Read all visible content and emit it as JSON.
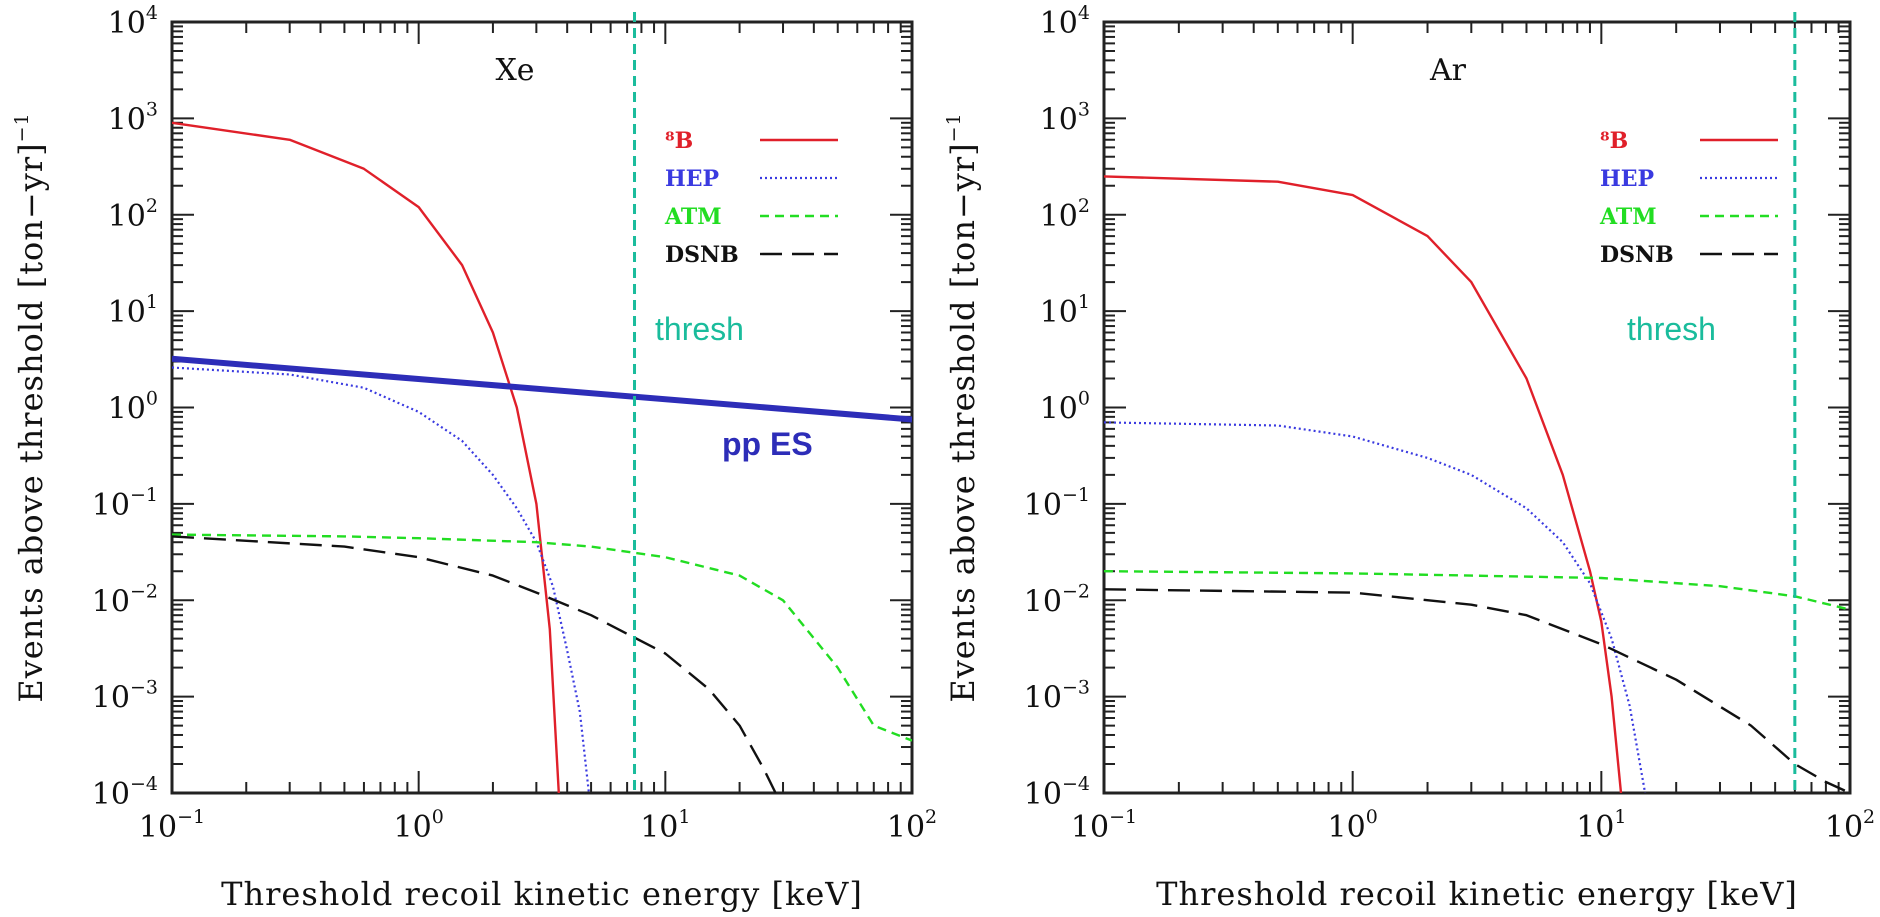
{
  "chart_data": [
    {
      "type": "line",
      "title": "Xe",
      "xlabel": "Threshold recoil kinetic energy [keV]",
      "ylabel": "Events above threshold [ton−yr]",
      "ylabel_exp": "−1",
      "x_scale": "log",
      "y_scale": "log",
      "xlim": [
        0.1,
        100
      ],
      "ylim": [
        0.0001,
        10000
      ],
      "x_ticks": [
        {
          "value": 0.1,
          "base": "10",
          "exp": "−1"
        },
        {
          "value": 1,
          "base": "10",
          "exp": "0"
        },
        {
          "value": 10,
          "base": "10",
          "exp": "1"
        },
        {
          "value": 100,
          "base": "10",
          "exp": "2"
        }
      ],
      "y_ticks": [
        {
          "value": 0.0001,
          "base": "10",
          "exp": "−4"
        },
        {
          "value": 0.001,
          "base": "10",
          "exp": "−3"
        },
        {
          "value": 0.01,
          "base": "10",
          "exp": "−2"
        },
        {
          "value": 0.1,
          "base": "10",
          "exp": "−1"
        },
        {
          "value": 1,
          "base": "10",
          "exp": "0"
        },
        {
          "value": 10,
          "base": "10",
          "exp": "1"
        },
        {
          "value": 100,
          "base": "10",
          "exp": "2"
        },
        {
          "value": 1000,
          "base": "10",
          "exp": "3"
        },
        {
          "value": 10000,
          "base": "10",
          "exp": "4"
        }
      ],
      "legend_placement": "top-right",
      "series": [
        {
          "name": "⁸B",
          "color": "#e0202a",
          "style": "solid",
          "x": [
            0.1,
            0.3,
            0.6,
            1.0,
            1.5,
            2.0,
            2.5,
            3.0,
            3.4,
            3.7
          ],
          "y": [
            900,
            600,
            300,
            120,
            30,
            6,
            1.0,
            0.1,
            0.005,
            0.0001
          ]
        },
        {
          "name": "HEP",
          "color": "#3a3ae0",
          "style": "dotted",
          "x": [
            0.1,
            0.3,
            0.6,
            1.0,
            1.5,
            2.0,
            2.5,
            3.0,
            3.5,
            4.0,
            4.5,
            4.9
          ],
          "y": [
            2.6,
            2.2,
            1.6,
            0.9,
            0.45,
            0.2,
            0.09,
            0.04,
            0.014,
            0.003,
            0.0007,
            0.0001
          ]
        },
        {
          "name": "ATM",
          "color": "#22dd22",
          "style": "dashed",
          "x": [
            0.1,
            0.5,
            1,
            3,
            5,
            10,
            20,
            30,
            50,
            70,
            100
          ],
          "y": [
            0.048,
            0.046,
            0.044,
            0.04,
            0.036,
            0.028,
            0.018,
            0.01,
            0.002,
            0.0005,
            0.00035
          ]
        },
        {
          "name": "DSNB",
          "color": "#111111",
          "style": "longdash",
          "x": [
            0.1,
            0.5,
            1,
            2,
            3,
            5,
            10,
            15,
            20,
            25,
            28
          ],
          "y": [
            0.046,
            0.036,
            0.028,
            0.018,
            0.012,
            0.007,
            0.0028,
            0.0012,
            0.0005,
            0.00018,
            0.0001
          ]
        },
        {
          "name": "pp ES",
          "label": "pp ES",
          "color": "#2d2db8",
          "style": "solid-thick",
          "x": [
            0.1,
            100
          ],
          "y": [
            3.2,
            0.75
          ]
        }
      ],
      "threshold": {
        "label": "thresh",
        "x": 7.5,
        "color": "#1abc9c"
      }
    },
    {
      "type": "line",
      "title": "Ar",
      "xlabel": "Threshold recoil kinetic energy [keV]",
      "ylabel": "Events above threshold [ton−yr]",
      "ylabel_exp": "−1",
      "x_scale": "log",
      "y_scale": "log",
      "xlim": [
        0.1,
        100
      ],
      "ylim": [
        0.0001,
        10000
      ],
      "x_ticks": [
        {
          "value": 0.1,
          "base": "10",
          "exp": "−1"
        },
        {
          "value": 1,
          "base": "10",
          "exp": "0"
        },
        {
          "value": 10,
          "base": "10",
          "exp": "1"
        },
        {
          "value": 100,
          "base": "10",
          "exp": "2"
        }
      ],
      "y_ticks": [
        {
          "value": 0.0001,
          "base": "10",
          "exp": "−4"
        },
        {
          "value": 0.001,
          "base": "10",
          "exp": "−3"
        },
        {
          "value": 0.01,
          "base": "10",
          "exp": "−2"
        },
        {
          "value": 0.1,
          "base": "10",
          "exp": "−1"
        },
        {
          "value": 1,
          "base": "10",
          "exp": "0"
        },
        {
          "value": 10,
          "base": "10",
          "exp": "1"
        },
        {
          "value": 100,
          "base": "10",
          "exp": "2"
        },
        {
          "value": 1000,
          "base": "10",
          "exp": "3"
        },
        {
          "value": 10000,
          "base": "10",
          "exp": "4"
        }
      ],
      "legend_placement": "top-right",
      "series": [
        {
          "name": "⁸B",
          "color": "#e0202a",
          "style": "solid",
          "x": [
            0.1,
            0.5,
            1,
            2,
            3,
            5,
            7,
            9,
            10,
            11,
            12
          ],
          "y": [
            250,
            220,
            160,
            60,
            20,
            2,
            0.2,
            0.02,
            0.006,
            0.001,
            0.0001
          ]
        },
        {
          "name": "HEP",
          "color": "#3a3ae0",
          "style": "dotted",
          "x": [
            0.1,
            0.5,
            1,
            2,
            3,
            5,
            7,
            9,
            11,
            13,
            15
          ],
          "y": [
            0.7,
            0.65,
            0.5,
            0.3,
            0.2,
            0.09,
            0.04,
            0.015,
            0.004,
            0.0008,
            0.0001
          ]
        },
        {
          "name": "ATM",
          "color": "#22dd22",
          "style": "dashed",
          "x": [
            0.1,
            1,
            3,
            10,
            30,
            60,
            100
          ],
          "y": [
            0.02,
            0.019,
            0.018,
            0.017,
            0.014,
            0.011,
            0.008
          ]
        },
        {
          "name": "DSNB",
          "color": "#111111",
          "style": "longdash",
          "x": [
            0.1,
            1,
            3,
            5,
            10,
            20,
            40,
            60,
            80,
            100
          ],
          "y": [
            0.013,
            0.012,
            0.009,
            0.007,
            0.0035,
            0.0015,
            0.0005,
            0.0002,
            0.00013,
            0.0001
          ]
        }
      ],
      "threshold": {
        "label": "thresh",
        "x": 60,
        "color": "#1abc9c"
      }
    }
  ]
}
